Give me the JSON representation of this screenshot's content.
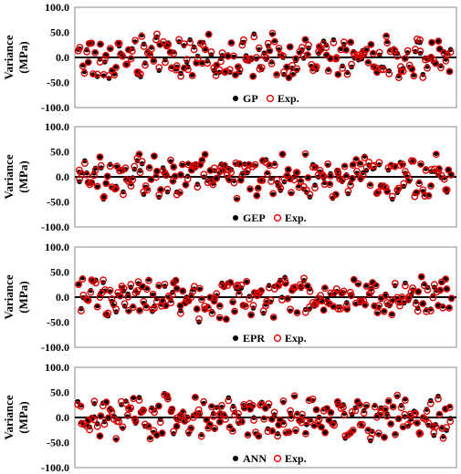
{
  "chart_data": [
    {
      "type": "scatter",
      "title": "",
      "ylabel_line1": "Variance",
      "ylabel_line2": "(MPa)",
      "ylim": [
        -100,
        100
      ],
      "yticks": [
        "100.0",
        "50.0",
        "0.0",
        "-50.0",
        "-100.0"
      ],
      "grid": false,
      "legend_position": "bottom-center",
      "series": [
        {
          "name": "GP",
          "marker": "filled-circle",
          "color": "#000000"
        },
        {
          "name": "Exp.",
          "marker": "open-circle",
          "color": "#e00000"
        }
      ]
    },
    {
      "type": "scatter",
      "title": "",
      "ylabel_line1": "Variance",
      "ylabel_line2": "(MPa)",
      "ylim": [
        -100,
        100
      ],
      "yticks": [
        "100.0",
        "50.0",
        "0.0",
        "-50.0",
        "-100.0"
      ],
      "grid": false,
      "legend_position": "bottom-center",
      "series": [
        {
          "name": "GEP",
          "marker": "filled-circle",
          "color": "#000000"
        },
        {
          "name": "Exp.",
          "marker": "open-circle",
          "color": "#e00000"
        }
      ]
    },
    {
      "type": "scatter",
      "title": "",
      "ylabel_line1": "Variance",
      "ylabel_line2": "(MPa)",
      "ylim": [
        -100,
        100
      ],
      "yticks": [
        "100.0",
        "50.0",
        "0.0",
        "-50.0",
        "-100.0"
      ],
      "grid": false,
      "legend_position": "bottom-center",
      "series": [
        {
          "name": "EPR",
          "marker": "filled-circle",
          "color": "#000000"
        },
        {
          "name": "Exp.",
          "marker": "open-circle",
          "color": "#e00000"
        }
      ]
    },
    {
      "type": "scatter",
      "title": "",
      "ylabel_line1": "Variance",
      "ylabel_line2": "(MPa)",
      "ylim": [
        -100,
        100
      ],
      "yticks": [
        "100.0",
        "50.0",
        "0.0",
        "-50.0",
        "-100.0"
      ],
      "grid": false,
      "legend_position": "bottom-center",
      "series": [
        {
          "name": "ANN",
          "marker": "filled-circle",
          "color": "#000000"
        },
        {
          "name": "Exp.",
          "marker": "open-circle",
          "color": "#e00000"
        }
      ]
    }
  ]
}
